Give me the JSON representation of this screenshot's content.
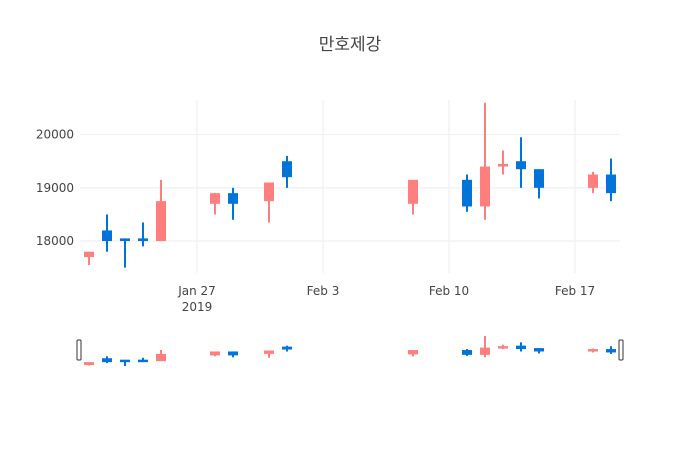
{
  "chart_data": {
    "type": "candlestick",
    "title": "만호제강",
    "xlabel": "",
    "ylabel": "",
    "x_range": [
      "2019-01-21",
      "2019-02-20"
    ],
    "ylim": [
      17400,
      20650
    ],
    "y_ticks": [
      18000,
      19000,
      20000
    ],
    "y_tick_labels": [
      "18000",
      "19000",
      "20000"
    ],
    "x_ticks": [
      {
        "date": "2019-01-27",
        "label": "Jan 27",
        "sublabel": "2019"
      },
      {
        "date": "2019-02-03",
        "label": "Feb 3",
        "sublabel": ""
      },
      {
        "date": "2019-02-10",
        "label": "Feb 10",
        "sublabel": ""
      },
      {
        "date": "2019-02-17",
        "label": "Feb 17",
        "sublabel": ""
      }
    ],
    "increasing_color": "#0074D9",
    "decreasing_color": "#FF7F7F",
    "grid": true,
    "legend": "none",
    "range_slider": true,
    "candles": [
      {
        "date": "2019-01-21",
        "open": 17800,
        "high": 17800,
        "low": 17550,
        "close": 17700
      },
      {
        "date": "2019-01-22",
        "open": 18000,
        "high": 18500,
        "low": 17800,
        "close": 18200
      },
      {
        "date": "2019-01-23",
        "open": 18000,
        "high": 18050,
        "low": 17500,
        "close": 18050
      },
      {
        "date": "2019-01-24",
        "open": 18000,
        "high": 18350,
        "low": 17900,
        "close": 18050
      },
      {
        "date": "2019-01-25",
        "open": 18750,
        "high": 19150,
        "low": 18000,
        "close": 18000
      },
      {
        "date": "2019-01-28",
        "open": 18900,
        "high": 18900,
        "low": 18500,
        "close": 18700
      },
      {
        "date": "2019-01-29",
        "open": 18700,
        "high": 19000,
        "low": 18400,
        "close": 18900
      },
      {
        "date": "2019-01-31",
        "open": 19100,
        "high": 19100,
        "low": 18350,
        "close": 18750
      },
      {
        "date": "2019-02-01",
        "open": 19200,
        "high": 19600,
        "low": 19000,
        "close": 19500
      },
      {
        "date": "2019-02-08",
        "open": 19150,
        "high": 19150,
        "low": 18500,
        "close": 18700
      },
      {
        "date": "2019-02-11",
        "open": 18650,
        "high": 19250,
        "low": 18550,
        "close": 19150
      },
      {
        "date": "2019-02-12",
        "open": 19400,
        "high": 20600,
        "low": 18400,
        "close": 18650
      },
      {
        "date": "2019-02-13",
        "open": 19450,
        "high": 19700,
        "low": 19250,
        "close": 19400
      },
      {
        "date": "2019-02-14",
        "open": 19350,
        "high": 19950,
        "low": 19000,
        "close": 19500
      },
      {
        "date": "2019-02-15",
        "open": 19000,
        "high": 19350,
        "low": 18800,
        "close": 19350
      },
      {
        "date": "2019-02-18",
        "open": 19250,
        "high": 19300,
        "low": 18900,
        "close": 19000
      },
      {
        "date": "2019-02-19",
        "open": 18900,
        "high": 19550,
        "low": 18750,
        "close": 19250
      }
    ]
  }
}
